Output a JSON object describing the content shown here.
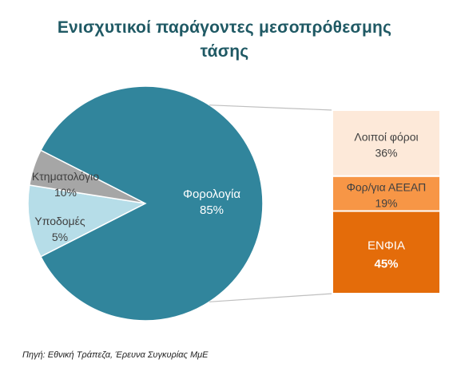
{
  "chart_data": {
    "type": "pie",
    "title_lines": [
      "Ενισχυτικοί παράγοντες μεσοπρόθεσμης",
      "τάσης"
    ],
    "slices": [
      {
        "label": "Φορολογία",
        "value": 85,
        "value_label": "85%",
        "color": "#31859c"
      },
      {
        "label": "Κτηματολόγιο",
        "value": 10,
        "value_label": "10%",
        "color": "#b6dde8"
      },
      {
        "label": "Υποδομές",
        "value": 5,
        "value_label": "5%",
        "color": "#a6a6a6"
      }
    ],
    "breakdown": {
      "of": "Φορολογία",
      "segments": [
        {
          "label": "Λοιποί φόροι",
          "value": 36,
          "value_label": "36%",
          "color": "#fde9d9"
        },
        {
          "label": "Φορ/για ΑΕΕΑΠ",
          "value": 19,
          "value_label": "19%",
          "color": "#f79646"
        },
        {
          "label": "ΕΝΦΙΑ",
          "value": 45,
          "value_label": "45%",
          "color": "#e46c0a"
        }
      ]
    },
    "source": "Πηγή: Εθνική Τράπεζα, Έρευνα Συγκυρίας ΜμΕ",
    "legend": "none",
    "grid": false
  }
}
